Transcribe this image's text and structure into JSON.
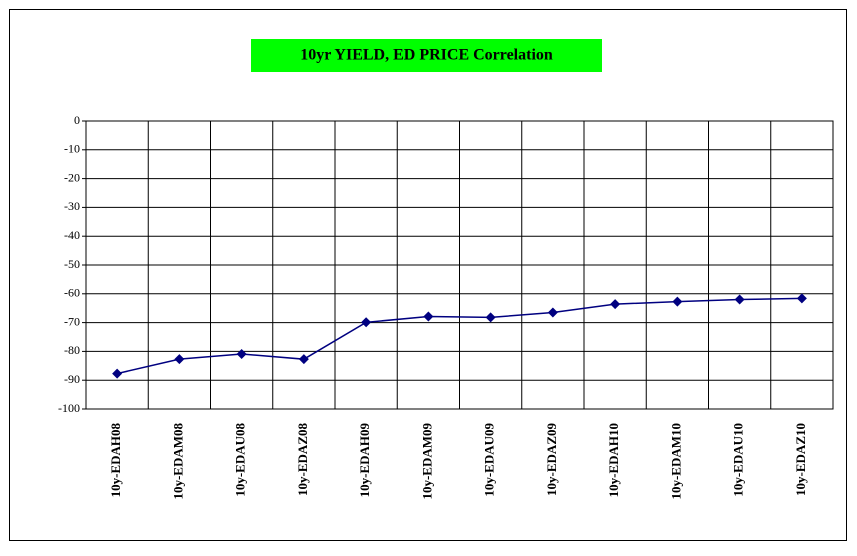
{
  "chart_data": {
    "type": "line",
    "title": "10yr YIELD, ED PRICE Correlation",
    "categories": [
      "10y-EDAH08",
      "10y-EDAM08",
      "10y-EDAU08",
      "10y-EDAZ08",
      "10y-EDAH09",
      "10y-EDAM09",
      "10y-EDAU09",
      "10y-EDAZ09",
      "10y-EDAH10",
      "10y-EDAM10",
      "10y-EDAU10",
      "10y-EDAZ10"
    ],
    "series": [
      {
        "color": "#000080",
        "values": [
          -87.7,
          -82.7,
          -80.9,
          -82.7,
          -69.9,
          -67.9,
          -68.2,
          -66.5,
          -63.6,
          -62.7,
          -62.0,
          -61.6
        ]
      }
    ],
    "ylim": [
      -100,
      0
    ],
    "yticks": [
      0,
      -10,
      -20,
      -30,
      -40,
      -50,
      -60,
      -70,
      -80,
      -90,
      -100
    ],
    "grid": true
  }
}
